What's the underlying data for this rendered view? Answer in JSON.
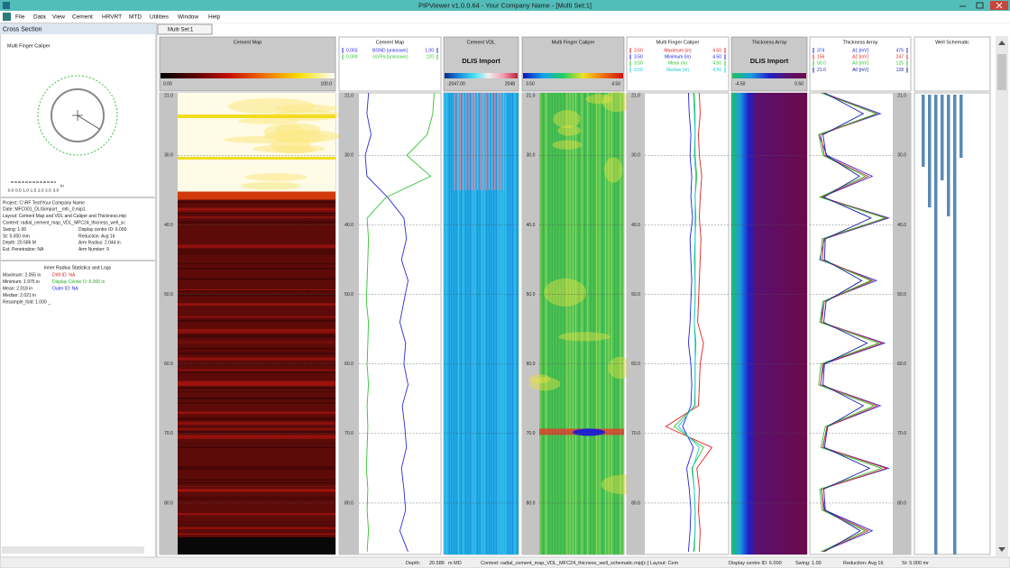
{
  "window": {
    "title": "PIPViewer v1.0.0.64 - Your Company Name - [Multi Set:1]",
    "menu": [
      "File",
      "Data",
      "View",
      "Cement",
      "HRVRT",
      "MTD",
      "Utilities",
      "Window",
      "Help"
    ]
  },
  "cross_section": {
    "title": "Cross Section",
    "plot_title": "Multi Finger Caliper",
    "scale_ticks": [
      "0.0",
      "0.5",
      "1.0",
      "1.5",
      "2.0",
      "2.5",
      "3.0"
    ],
    "scale_unit": "in",
    "info": [
      [
        "Project: C:\\RF Test\\Your Company Name"
      ],
      [
        "Date: MFC001_DLISimport__mfc_0.mip1"
      ],
      [
        "Layout: Cement Map and VDL and Caliper and Thickness.mip"
      ],
      [
        "Context: radial_cement_map_VDL_MFC24_thicness_well_sc"
      ],
      [
        "Swing: 1.00",
        "Display centre ID: 6.000"
      ],
      [
        "St: 5.000 mm",
        "Reduction: Avg 16"
      ],
      [
        "Depth:    20.586 M",
        "Arm Radius: 2.044 in"
      ],
      [
        "Est. Penetration: NA",
        "Arm Number: 9"
      ]
    ],
    "stats_title": "Inner Radius Statistics and Logs",
    "stats": [
      [
        "Maximum: 2.055 in",
        "Drift ID: NA"
      ],
      [
        "Minimum: 1.975 in",
        "Display Center D: 6.000 in"
      ],
      [
        "Mean: 2.018 in",
        "Outer ID: NA"
      ],
      [
        "Median: 2.021 in"
      ],
      [
        "Resample_fold: 1.000 _"
      ]
    ]
  },
  "tab": "Multi Set:1",
  "chart_data": {
    "type": "line",
    "ylim": [
      21,
      87.4
    ],
    "yticks": [
      {
        "value": 21,
        "label": "21.0"
      },
      {
        "value": 30,
        "label": "30.0"
      },
      {
        "value": 40,
        "label": "40.0"
      },
      {
        "value": 50,
        "label": "50.0"
      },
      {
        "value": 60,
        "label": "60.0"
      },
      {
        "value": 70,
        "label": "70.0"
      },
      {
        "value": 80,
        "label": "80.0"
      }
    ],
    "grid": true,
    "x": [
      21,
      24,
      27,
      30,
      33,
      36,
      39,
      42,
      45,
      48,
      51,
      54,
      57,
      60,
      63,
      66,
      69,
      72,
      75,
      78,
      81,
      84,
      87
    ],
    "tracks": [
      {
        "title": "Cement Map",
        "scale": [
          {
            "value": 0,
            "label": "0.00"
          },
          {
            "value": 100,
            "label": "100.0"
          }
        ],
        "colormap": [
          "#000000",
          "#5a0000",
          "#c81000",
          "#f07000",
          "#f8e000",
          "#ffffff"
        ]
      },
      {
        "title": "Cement Map",
        "series": [
          {
            "name": "BOND [unknown]",
            "color": "#2b2bd8",
            "xticks": [
              0.003,
              {
                "value": 1,
                "label": "1.00"
              }
            ],
            "values": [
              0.12,
              0.1,
              0.15,
              0.08,
              0.1,
              0.35,
              0.55,
              0.58,
              0.52,
              0.6,
              0.55,
              0.5,
              0.57,
              0.55,
              0.6,
              0.53,
              0.56,
              0.58,
              0.52,
              0.55,
              0.57,
              0.5,
              0.6
            ]
          },
          {
            "name": "ssVPa [unknown]",
            "color": "#33c433",
            "xticks": [
              {
                "value": 0,
                "label": "0.000"
              },
              120
            ],
            "values": [
              110,
              108,
              100,
              70,
              105,
              40,
              12,
              14,
              13,
              12,
              11,
              14,
              13,
              12,
              14,
              12,
              13,
              12,
              11,
              13,
              12,
              14,
              12
            ]
          }
        ]
      },
      {
        "title": "Cement VDL",
        "subtitle": "DLIS Import",
        "scale": [
          {
            "value": -2047,
            "label": "-2047.00"
          },
          2048
        ],
        "colormap": [
          "#0a2a8a",
          "#1a8ae0",
          "#40e0f0",
          "#f0f0f0",
          "#f0a0b0",
          "#c02040"
        ]
      },
      {
        "title": "Multi Finger Caliper",
        "scale": [
          {
            "value": 3.5,
            "label": "3.50"
          },
          {
            "value": 4.5,
            "label": "4.50"
          }
        ],
        "colormap": [
          "#1010c0",
          "#10a0f0",
          "#20d060",
          "#f0e020",
          "#f07010",
          "#d01010"
        ]
      },
      {
        "title": "Multi Finger Caliper",
        "series": [
          {
            "name": "Maximum (in)",
            "color": "#e02020",
            "xticks": [
              {
                "value": 3.5,
                "label": "3.50"
              },
              {
                "value": 4.5,
                "label": "4.50"
              }
            ],
            "values": [
              4.15,
              4.16,
              4.14,
              4.15,
              4.18,
              4.16,
              4.15,
              4.17,
              4.16,
              4.15,
              4.14,
              4.13,
              4.2,
              4.16,
              4.15,
              4.14,
              3.75,
              4.3,
              4.12,
              4.15,
              4.14,
              4.16,
              4.15
            ]
          },
          {
            "name": "Minimum (in)",
            "color": "#2020e0",
            "xticks": [
              {
                "value": 3.5,
                "label": "3.50"
              },
              {
                "value": 4.5,
                "label": "4.50"
              }
            ],
            "values": [
              4.02,
              4.03,
              4.05,
              4.04,
              4.06,
              4.05,
              4.07,
              4.04,
              4.05,
              4.06,
              4.05,
              4.04,
              4.02,
              4.05,
              4.06,
              4.05,
              3.95,
              4.08,
              4.0,
              4.03,
              4.05,
              4.04,
              4.02
            ]
          },
          {
            "name": "Mean (in)",
            "color": "#30c030",
            "xticks": [
              {
                "value": 3.5,
                "label": "3.50"
              },
              {
                "value": 4.5,
                "label": "4.50"
              }
            ],
            "values": [
              4.09,
              4.1,
              4.1,
              4.1,
              4.12,
              4.1,
              4.11,
              4.1,
              4.1,
              4.1,
              4.1,
              4.09,
              4.11,
              4.1,
              4.1,
              4.1,
              3.85,
              4.2,
              4.06,
              4.09,
              4.1,
              4.1,
              4.09
            ]
          },
          {
            "name": "Median (in)",
            "color": "#20c8d8",
            "xticks": [
              {
                "value": 3.5,
                "label": "3.50"
              },
              {
                "value": 4.5,
                "label": "4.50"
              }
            ],
            "values": [
              4.08,
              4.09,
              4.1,
              4.09,
              4.11,
              4.1,
              4.1,
              4.1,
              4.09,
              4.1,
              4.1,
              4.09,
              4.1,
              4.1,
              4.1,
              4.09,
              3.9,
              4.15,
              4.07,
              4.09,
              4.1,
              4.1,
              4.08
            ]
          }
        ]
      },
      {
        "title": "Thickness Array",
        "subtitle": "DLIS Import",
        "scale": [
          {
            "value": -4.5,
            "label": "-4.50"
          },
          {
            "value": 0.5,
            "label": "0.50"
          }
        ],
        "colormap": [
          "#20c060",
          "#1a9ee0",
          "#2020c8",
          "#5a1070",
          "#6a0a4a"
        ]
      },
      {
        "title": "Thickness Array",
        "series": [
          {
            "name": "A1 [mV]",
            "color": "#2a2ae0",
            "xticks": [
              374,
              475
            ],
            "values": [
              390,
              460,
              385,
              395,
              450,
              388,
              470,
              392,
              386,
              455,
              390,
              388,
              465,
              391,
              387,
              460,
              395,
              390,
              470,
              388,
              392,
              450,
              389
            ]
          },
          {
            "name": "A2 [mV]",
            "color": "#e02a2a",
            "xticks": [
              156,
              247
            ],
            "values": [
              170,
              230,
              168,
              172,
              220,
              169,
              240,
              171,
              170,
              225,
              172,
              169,
              235,
              170,
              168,
              230,
              175,
              170,
              240,
              169,
              171,
              220,
              170
            ]
          },
          {
            "name": "A3 [mV]",
            "color": "#2ac42a",
            "xticks": [
              {
                "value": 50,
                "label": "50.0"
              },
              125
            ],
            "values": [
              60,
              110,
              58,
              62,
              100,
              59,
              118,
              61,
              60,
              105,
              62,
              59,
              112,
              60,
              58,
              108,
              64,
              60,
              115,
              59,
              61,
              100,
              60
            ]
          },
          {
            "name": "A0 [mV]",
            "color": "#1a1ab0",
            "xticks": [
              {
                "value": 21,
                "label": "21.0"
              },
              128
            ],
            "values": [
              40,
              90,
              38,
              42,
              85,
              39,
              100,
              41,
              40,
              88,
              42,
              39,
              95,
              40,
              38,
              90,
              44,
              40,
              98,
              39,
              41,
              86,
              40
            ]
          }
        ]
      },
      {
        "title": "Well Schematic"
      }
    ]
  },
  "status": [
    "Depth:",
    "20.586",
    "m MD",
    "Context: radial_cement_map_VDL_MFC24_thicness_well_schematic.mip[c:] Layout: Cem",
    "Display centre ID: 6.000",
    "Swing: 1.00",
    "Reduction: Avg 16",
    "St: 5.000 mr"
  ]
}
